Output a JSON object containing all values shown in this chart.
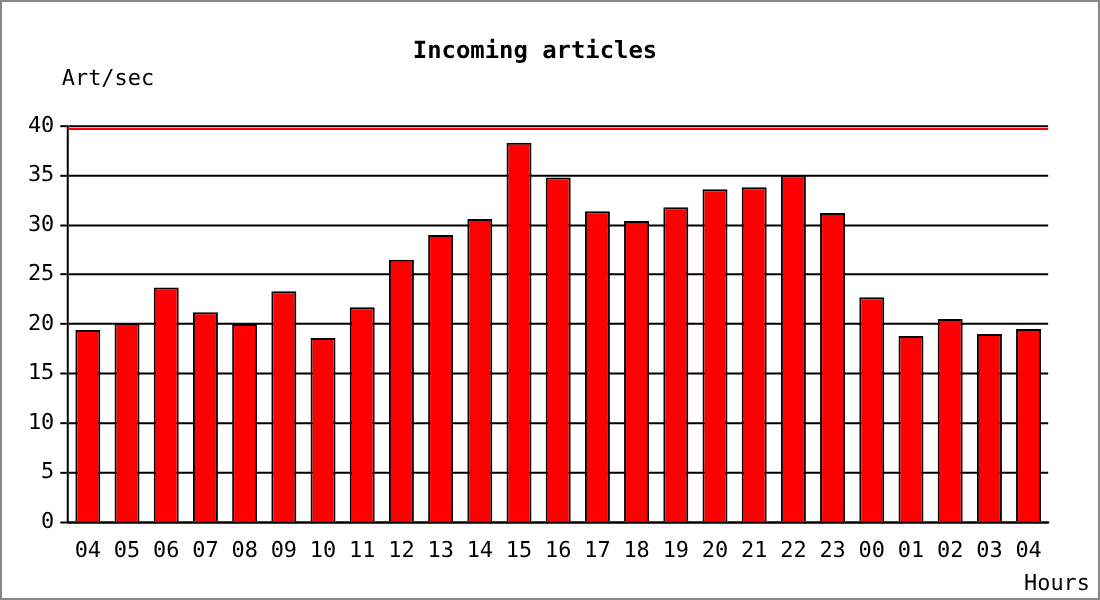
{
  "chart_data": {
    "type": "bar",
    "title": "Incoming articles",
    "ylabel": "Art/sec",
    "xlabel": "Hours",
    "categories": [
      "04",
      "05",
      "06",
      "07",
      "08",
      "09",
      "10",
      "11",
      "12",
      "13",
      "14",
      "15",
      "16",
      "17",
      "18",
      "19",
      "20",
      "21",
      "22",
      "23",
      "00",
      "01",
      "02",
      "03",
      "04"
    ],
    "values": [
      19.4,
      20.1,
      23.7,
      21.2,
      20.0,
      23.3,
      18.6,
      21.7,
      26.5,
      29.0,
      30.6,
      38.3,
      34.8,
      31.4,
      30.4,
      31.8,
      33.6,
      33.8,
      35.0,
      31.2,
      22.7,
      18.8,
      20.5,
      19.0,
      19.5
    ],
    "color": "#ff0000",
    "ylim": [
      0,
      40
    ],
    "yticks": [
      0,
      5,
      10,
      15,
      20,
      25,
      30,
      35,
      40
    ],
    "grid": "y",
    "legend": false,
    "ref_lines": [
      {
        "axis": "y",
        "value": 39.7,
        "color": "#ff0000"
      }
    ]
  }
}
